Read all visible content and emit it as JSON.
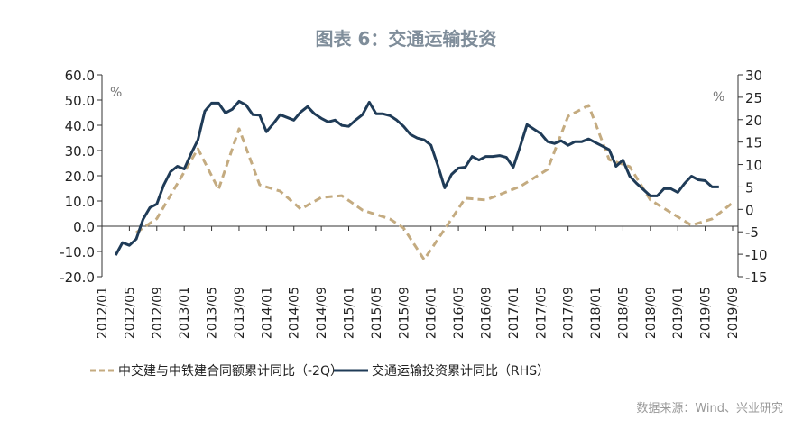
{
  "chart_data": {
    "type": "line",
    "title": "图表 6：交通运输投资",
    "left_unit": "%",
    "right_unit": "%",
    "left_ylim": [
      -20,
      60
    ],
    "right_ylim": [
      -15,
      30
    ],
    "left_ticks": [
      "60.0",
      "50.0",
      "40.0",
      "30.0",
      "20.0",
      "10.0",
      "0.0",
      "-10.0",
      "-20.0"
    ],
    "left_tick_values": [
      60,
      50,
      40,
      30,
      20,
      10,
      0,
      -10,
      -20
    ],
    "right_ticks": [
      "30",
      "25",
      "20",
      "15",
      "10",
      "5",
      "0",
      "-5",
      "-10",
      "-15"
    ],
    "right_tick_values": [
      30,
      25,
      20,
      15,
      10,
      5,
      0,
      -5,
      -10,
      -15
    ],
    "x_start": "2012/01",
    "x_end": "2019/09",
    "x_ticks": [
      "2012/01",
      "2012/05",
      "2012/09",
      "2013/01",
      "2013/05",
      "2013/09",
      "2014/01",
      "2014/05",
      "2014/09",
      "2015/01",
      "2015/05",
      "2015/09",
      "2016/01",
      "2016/05",
      "2016/09",
      "2017/01",
      "2017/05",
      "2017/09",
      "2018/01",
      "2018/05",
      "2018/09",
      "2019/01",
      "2019/05",
      "2019/09"
    ],
    "series": [
      {
        "name": "中交建与中铁建合同额累计同比（-2Q）",
        "axis": "left",
        "style": "dashed",
        "color": "#c4ab80",
        "points": [
          [
            5,
            -2.5
          ],
          [
            8,
            3
          ],
          [
            14,
            30.7
          ],
          [
            17,
            14.6
          ],
          [
            20,
            38.6
          ],
          [
            23,
            16.4
          ],
          [
            26,
            13.9
          ],
          [
            29,
            6.8
          ],
          [
            32,
            11.4
          ],
          [
            35,
            12.1
          ],
          [
            38,
            6.4
          ],
          [
            42,
            2.9
          ],
          [
            44,
            -0.7
          ],
          [
            47,
            -13.2
          ],
          [
            51,
            2.9
          ],
          [
            53,
            11.1
          ],
          [
            56,
            10.4
          ],
          [
            61,
            15.7
          ],
          [
            65,
            22.5
          ],
          [
            68,
            43.6
          ],
          [
            71,
            47.9
          ],
          [
            74,
            26.4
          ],
          [
            77,
            23.6
          ],
          [
            80,
            10.4
          ],
          [
            86,
            0.4
          ],
          [
            89,
            2.9
          ],
          [
            92,
            9.3
          ]
        ]
      },
      {
        "name": "交通运输投资累计同比（RHS）",
        "axis": "right",
        "style": "solid",
        "color": "#1f3b57",
        "points": [
          [
            2,
            -10.2
          ],
          [
            3,
            -7.4
          ],
          [
            4,
            -8
          ],
          [
            5,
            -6.6
          ],
          [
            6,
            -2.2
          ],
          [
            7,
            0.4
          ],
          [
            8,
            1.2
          ],
          [
            9,
            5.4
          ],
          [
            10,
            8.4
          ],
          [
            11,
            9.6
          ],
          [
            12,
            9.0
          ],
          [
            13,
            12.4
          ],
          [
            14,
            15.5
          ],
          [
            15,
            21.9
          ],
          [
            16,
            23.7
          ],
          [
            17,
            23.7
          ],
          [
            18,
            21.5
          ],
          [
            19,
            22.3
          ],
          [
            20,
            24.1
          ],
          [
            21,
            23.3
          ],
          [
            22,
            21.1
          ],
          [
            23,
            21.0
          ],
          [
            24,
            17.3
          ],
          [
            25,
            19.1
          ],
          [
            26,
            21.1
          ],
          [
            27,
            20.5
          ],
          [
            28,
            19.9
          ],
          [
            29,
            21.7
          ],
          [
            30,
            22.9
          ],
          [
            31,
            21.3
          ],
          [
            32,
            20.3
          ],
          [
            33,
            19.5
          ],
          [
            34,
            19.9
          ],
          [
            35,
            18.7
          ],
          [
            36,
            18.5
          ],
          [
            37,
            19.9
          ],
          [
            38,
            21.1
          ],
          [
            39,
            23.9
          ],
          [
            40,
            21.3
          ],
          [
            41,
            21.3
          ],
          [
            42,
            20.9
          ],
          [
            43,
            19.9
          ],
          [
            44,
            18.5
          ],
          [
            45,
            16.7
          ],
          [
            46,
            15.9
          ],
          [
            47,
            15.5
          ],
          [
            48,
            14.3
          ],
          [
            49,
            9.8
          ],
          [
            50,
            4.8
          ],
          [
            51,
            7.8
          ],
          [
            52,
            9.2
          ],
          [
            53,
            9.4
          ],
          [
            54,
            11.8
          ],
          [
            55,
            11.0
          ],
          [
            56,
            11.8
          ],
          [
            57,
            11.8
          ],
          [
            58,
            12.0
          ],
          [
            59,
            11.6
          ],
          [
            60,
            9.4
          ],
          [
            61,
            14.0
          ],
          [
            62,
            18.9
          ],
          [
            63,
            17.9
          ],
          [
            64,
            16.9
          ],
          [
            65,
            15.1
          ],
          [
            66,
            14.7
          ],
          [
            67,
            15.3
          ],
          [
            68,
            14.3
          ],
          [
            69,
            15.1
          ],
          [
            70,
            15.1
          ],
          [
            71,
            15.7
          ],
          [
            72,
            14.9
          ],
          [
            73,
            14.1
          ],
          [
            74,
            13.3
          ],
          [
            75,
            9.6
          ],
          [
            76,
            11.0
          ],
          [
            77,
            7.4
          ],
          [
            78,
            5.8
          ],
          [
            79,
            4.4
          ],
          [
            80,
            3.0
          ],
          [
            81,
            3.0
          ],
          [
            82,
            4.6
          ],
          [
            83,
            4.6
          ],
          [
            84,
            3.8
          ],
          [
            85,
            5.8
          ],
          [
            86,
            7.4
          ],
          [
            87,
            6.6
          ],
          [
            88,
            6.4
          ],
          [
            89,
            5.0
          ],
          [
            90,
            5.0
          ]
        ]
      }
    ],
    "legend": [
      "中交建与中铁建合同额累计同比（-2Q）",
      "交通运输投资累计同比（RHS）"
    ],
    "legend_position": "bottom",
    "source": "数据来源：Wind、兴业研究"
  }
}
